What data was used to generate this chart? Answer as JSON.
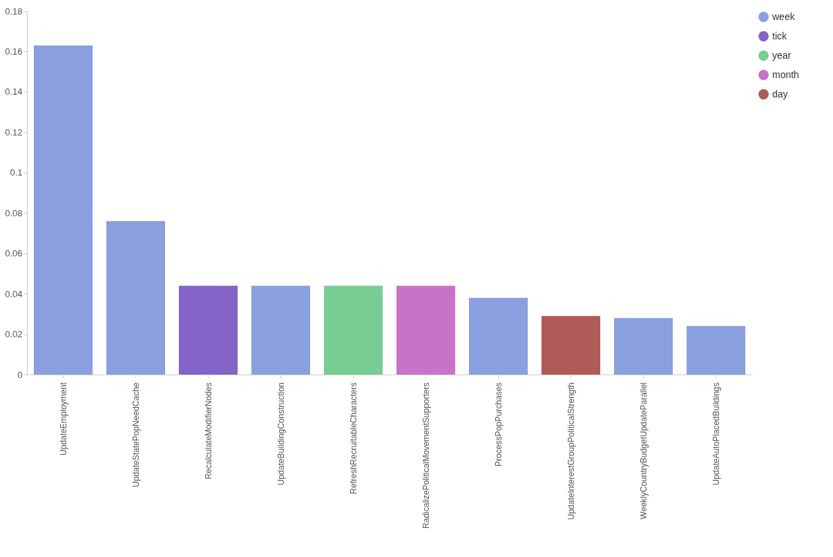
{
  "chart_data": {
    "type": "bar",
    "categories": [
      "UpdateEmployment",
      "UpdateStatePopNeedCache",
      "RecalculateModifierNodes",
      "UpdateBuildingConstruction",
      "RefreshRecruitableCharacters",
      "RadicalizePoliticalMovementSupporters",
      "ProcessPopPurchases",
      "UpdateInterestGroupPoliticalStrength",
      "WeeklyCountryBudgetUpdateParallel",
      "UpdateAutoPlacedBuildings"
    ],
    "series": [
      {
        "name": "week",
        "color": "#8a9fde",
        "values": [
          0.163,
          0.076,
          null,
          0.044,
          null,
          null,
          0.038,
          null,
          0.028,
          0.024
        ]
      },
      {
        "name": "tick",
        "color": "#8464c6",
        "values": [
          null,
          null,
          0.044,
          null,
          null,
          null,
          null,
          null,
          null,
          null
        ]
      },
      {
        "name": "year",
        "color": "#78cd95",
        "values": [
          null,
          null,
          null,
          null,
          0.044,
          null,
          null,
          null,
          null,
          null
        ]
      },
      {
        "name": "month",
        "color": "#c873c8",
        "values": [
          null,
          null,
          null,
          null,
          null,
          0.044,
          null,
          null,
          null,
          null
        ]
      },
      {
        "name": "day",
        "color": "#b05b58",
        "values": [
          null,
          null,
          null,
          null,
          null,
          null,
          null,
          0.029,
          null,
          null
        ]
      }
    ],
    "ylim": [
      0,
      0.18
    ],
    "yticks": [
      0,
      0.02,
      0.04,
      0.06,
      0.08,
      0.1,
      0.12,
      0.14,
      0.16,
      0.18
    ],
    "grid": false,
    "legend": "top right"
  }
}
